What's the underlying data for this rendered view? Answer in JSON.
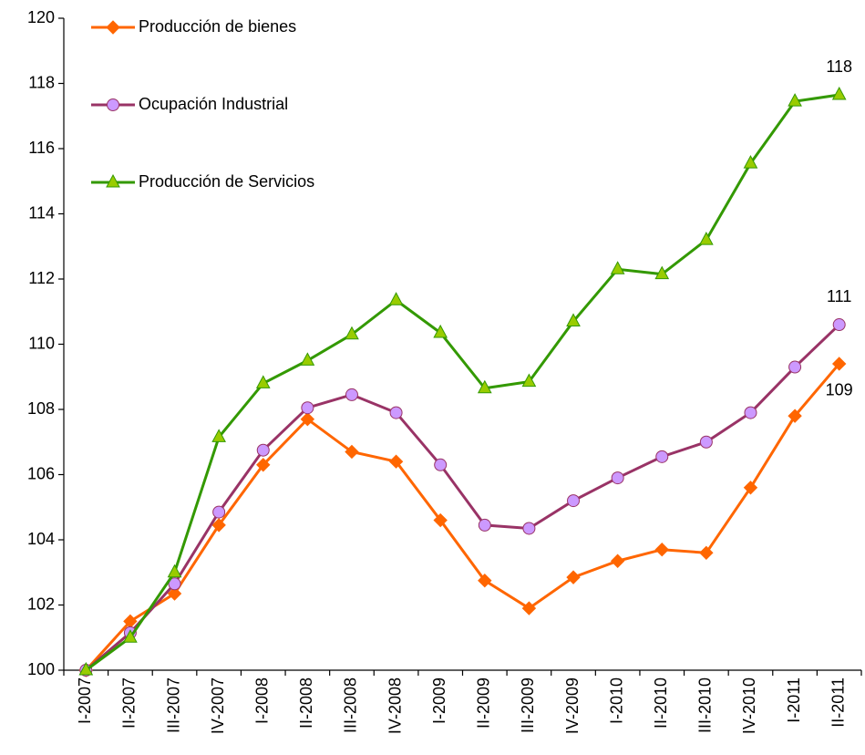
{
  "chart_data": {
    "type": "line",
    "categories": [
      "I-2007",
      "II-2007",
      "III-2007",
      "IV-2007",
      "I-2008",
      "II-2008",
      "III-2008",
      "IV-2008",
      "I-2009",
      "II-2009",
      "III-2009",
      "IV-2009",
      "I-2010",
      "II-2010",
      "III-2010",
      "IV-2010",
      "I-2011",
      "II-2011"
    ],
    "series": [
      {
        "name": "Producción de bienes",
        "color": "#ff6600",
        "marker": "diamond",
        "marker_color": "#ff6600",
        "values": [
          100,
          101.5,
          102.35,
          104.45,
          106.3,
          107.7,
          106.7,
          106.4,
          104.6,
          102.75,
          101.9,
          102.85,
          103.35,
          103.7,
          103.6,
          105.6,
          107.8,
          109.4
        ],
        "value_labels": [
          null,
          null,
          null,
          null,
          null,
          null,
          null,
          null,
          null,
          null,
          null,
          null,
          null,
          null,
          null,
          null,
          null,
          "109"
        ]
      },
      {
        "name": "Ocupación Industrial",
        "color": "#993366",
        "marker": "circle",
        "marker_color": "#cc99ff",
        "values": [
          100,
          101.15,
          102.65,
          104.85,
          106.75,
          108.05,
          108.45,
          107.9,
          106.3,
          104.45,
          104.35,
          105.2,
          105.9,
          106.55,
          107.0,
          107.9,
          109.3,
          110.6
        ],
        "value_labels": [
          null,
          null,
          null,
          null,
          null,
          null,
          null,
          null,
          null,
          null,
          null,
          null,
          null,
          null,
          null,
          null,
          null,
          "111"
        ]
      },
      {
        "name": "Producción de Servicios",
        "color": "#339900",
        "marker": "triangle",
        "marker_color": "#99cc00",
        "values": [
          100,
          101.0,
          103.0,
          107.15,
          108.8,
          109.5,
          110.3,
          111.35,
          110.35,
          108.65,
          108.85,
          110.7,
          112.3,
          112.15,
          113.2,
          115.55,
          117.45,
          117.65
        ],
        "value_labels": [
          null,
          null,
          null,
          null,
          null,
          null,
          null,
          null,
          null,
          null,
          null,
          null,
          null,
          null,
          null,
          null,
          null,
          "118"
        ]
      }
    ],
    "ylim": [
      100,
      120
    ],
    "yticks": [
      100,
      102,
      104,
      106,
      108,
      110,
      112,
      114,
      116,
      118,
      120
    ],
    "grid": false,
    "legend": "upper left"
  }
}
